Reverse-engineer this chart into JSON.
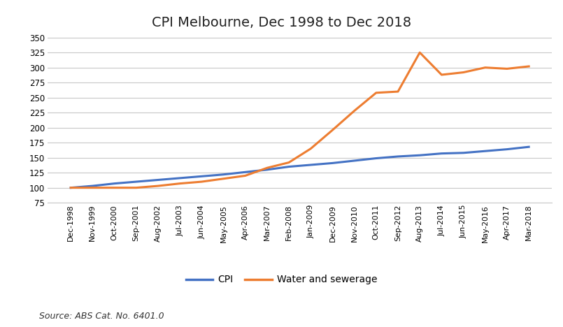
{
  "title": "CPI Melbourne, Dec 1998 to Dec 2018",
  "source_text": "Source: ABS Cat. No. 6401.0",
  "cpi_color": "#4472C4",
  "water_color": "#ED7D31",
  "ylim": [
    75,
    358
  ],
  "yticks": [
    75,
    100,
    125,
    150,
    175,
    200,
    225,
    250,
    275,
    300,
    325,
    350
  ],
  "background_color": "#ffffff",
  "grid_color": "#c8c8c8",
  "labels": {
    "cpi": "CPI",
    "water": "Water and sewerage"
  },
  "x_labels": [
    "Dec-1998",
    "Nov-1999",
    "Oct-2000",
    "Sep-2001",
    "Aug-2002",
    "Jul-2003",
    "Jun-2004",
    "May-2005",
    "Apr-2006",
    "Mar-2007",
    "Feb-2008",
    "Jan-2009",
    "Dec-2009",
    "Nov-2010",
    "Oct-2011",
    "Sep-2012",
    "Aug-2013",
    "Jul-2014",
    "Jun-2015",
    "May-2016",
    "Apr-2017",
    "Mar-2018"
  ],
  "cpi_values": [
    100,
    103,
    107,
    110,
    113,
    116,
    119,
    122,
    126,
    130,
    135,
    138,
    141,
    145,
    149,
    152,
    154,
    157,
    158,
    161,
    164,
    168
  ],
  "water_values": [
    100,
    100,
    100,
    100,
    103,
    107,
    110,
    115,
    120,
    133,
    142,
    165,
    196,
    228,
    258,
    260,
    325,
    288,
    292,
    300,
    298,
    302
  ]
}
